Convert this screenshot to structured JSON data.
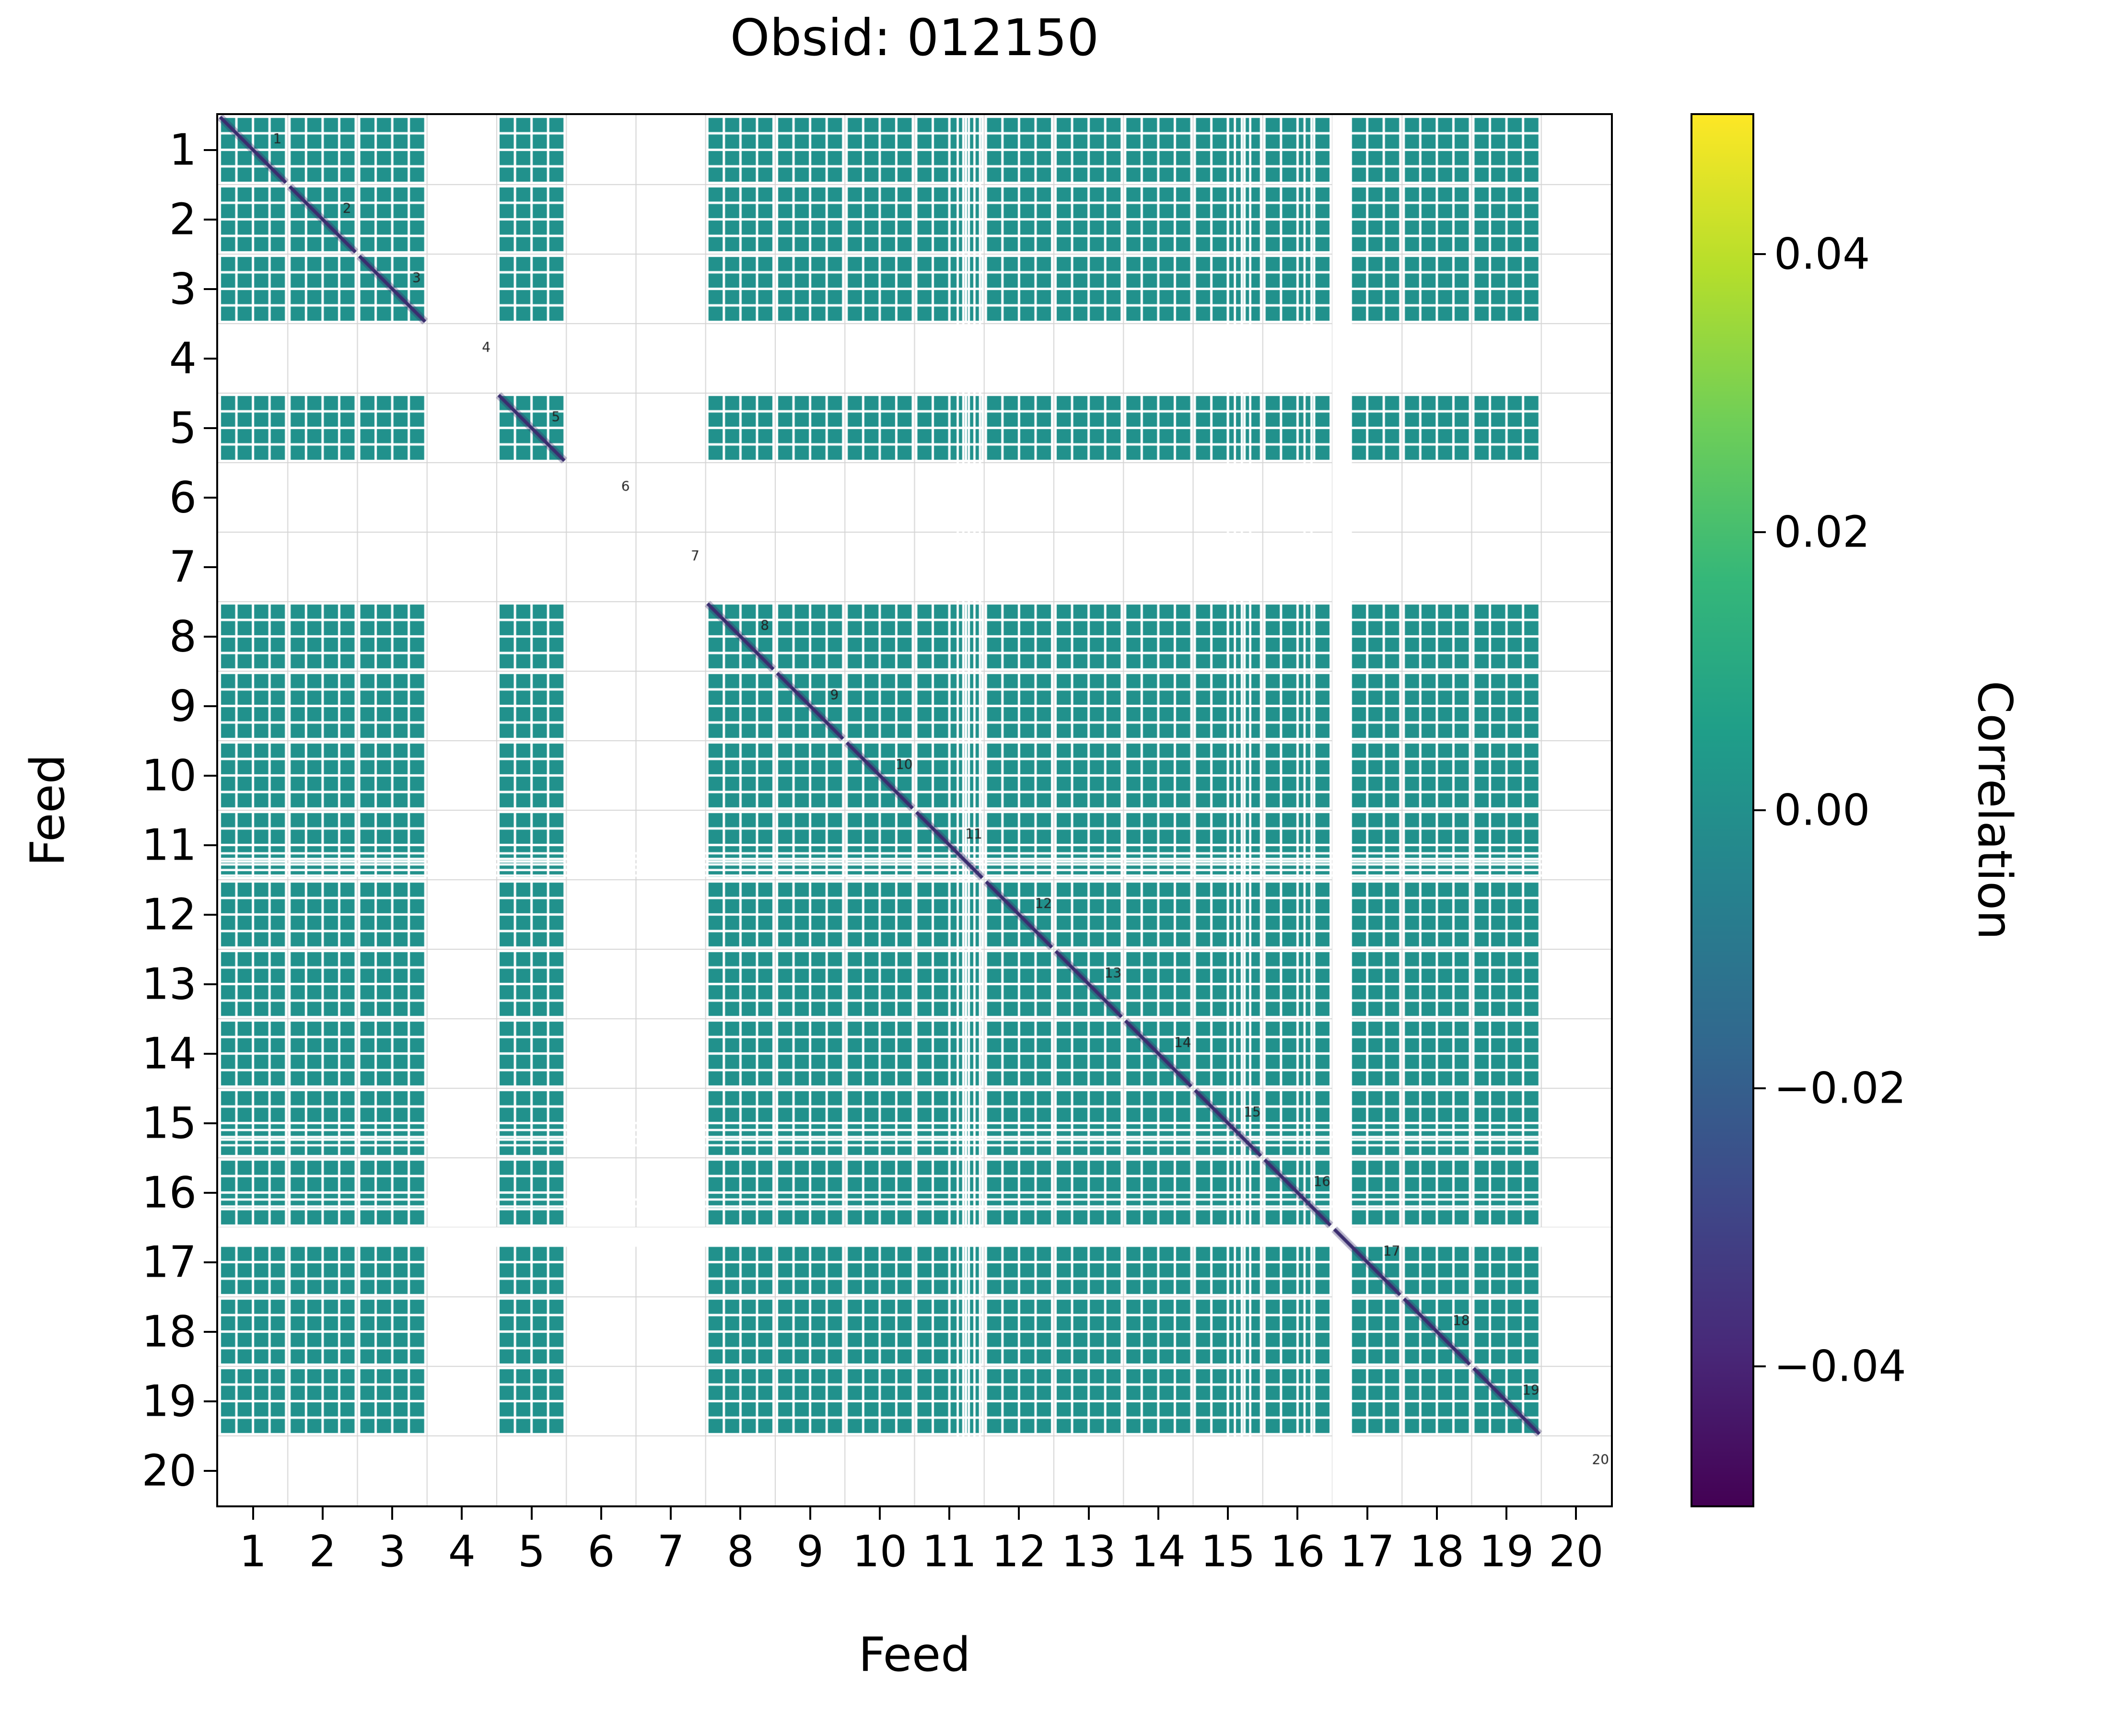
{
  "chart_data": {
    "type": "heatmap",
    "title": "Obsid: 012150",
    "xlabel": "Feed",
    "ylabel": "Feed",
    "n_feeds": 20,
    "x_ticks": [
      "1",
      "2",
      "3",
      "4",
      "5",
      "6",
      "7",
      "8",
      "9",
      "10",
      "11",
      "12",
      "13",
      "14",
      "15",
      "16",
      "17",
      "18",
      "19",
      "20"
    ],
    "y_ticks": [
      "1",
      "2",
      "3",
      "4",
      "5",
      "6",
      "7",
      "8",
      "9",
      "10",
      "11",
      "12",
      "13",
      "14",
      "15",
      "16",
      "17",
      "18",
      "19",
      "20"
    ],
    "diagonal_labels": [
      "1",
      "2",
      "3",
      "4",
      "5",
      "6",
      "7",
      "8",
      "9",
      "10",
      "11",
      "12",
      "13",
      "14",
      "15",
      "16",
      "17",
      "18",
      "19",
      "20"
    ],
    "active_feeds": [
      1,
      2,
      3,
      5,
      8,
      9,
      10,
      11,
      12,
      13,
      14,
      15,
      16,
      17,
      18,
      19
    ],
    "missing_feeds": [
      4,
      6,
      7,
      20
    ],
    "subcells_per_feed": 4,
    "off_diagonal_value": 0.0,
    "cell_color": "#21918c",
    "diagonal_line_color": "#3a2d6e",
    "grid_color": "#d4d4d4",
    "annotation_color": "#222222",
    "flagged_lines": [
      10.62,
      10.7,
      10.78,
      10.86,
      10.94,
      14.5,
      14.6,
      14.7,
      14.82,
      15.6,
      15.7
    ],
    "flagged_line_width": 0.032,
    "flagged_band": {
      "start": 16.0,
      "end": 16.28
    },
    "colorbar": {
      "label": "Correlation",
      "tick_labels": [
        "0.04",
        "0.02",
        "0.00",
        "−0.02",
        "−0.04"
      ],
      "tick_values": [
        0.04,
        0.02,
        0.0,
        -0.02,
        -0.04
      ],
      "vmin": -0.05,
      "vmax": 0.05,
      "colormap": "viridis",
      "gradient_stops": [
        "#440154",
        "#482878",
        "#3e4989",
        "#31688e",
        "#26828e",
        "#1f9e89",
        "#35b779",
        "#6ece58",
        "#b5de2b",
        "#fde725"
      ]
    }
  }
}
